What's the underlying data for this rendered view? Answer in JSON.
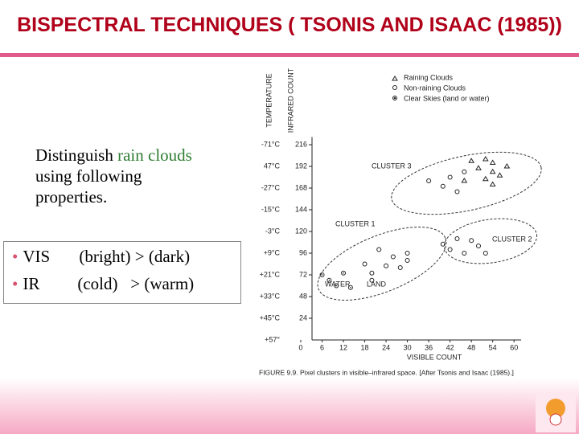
{
  "header": {
    "title": "BISPECTRAL TECHNIQUES ( TSONIS AND ISAAC (1985))"
  },
  "body": {
    "intro": [
      "Distinguish ",
      "rain clouds",
      " using following properties."
    ],
    "bullets": [
      [
        "VIS",
        "(bright) > (dark)"
      ],
      [
        "IR",
        "(cold)   > (warm)"
      ]
    ]
  },
  "figure": {
    "type": "scatter",
    "y_label": "TEMPERATURE",
    "y2_label": "INFRARED COUNT",
    "x_label": "VISIBLE COUNT",
    "caption": "FIGURE 9.9.   Pixel clusters in visible–infrared space. [After Tsonis and Isaac (1985).]",
    "xlim": [
      0,
      62
    ],
    "ylim": [
      0,
      220
    ],
    "xticks": [
      0,
      6,
      12,
      18,
      24,
      30,
      36,
      42,
      48,
      54,
      60
    ],
    "yticks": [
      216,
      192,
      168,
      144,
      120,
      96,
      72,
      48,
      24
    ],
    "temperature_labels": [
      "-71°C",
      "47°C",
      "-27°C",
      "-15°C",
      "-3°C",
      "+9°C",
      "+21°C",
      "+33°C",
      "+45°C",
      "+57°"
    ],
    "annotations": [
      "CLUSTER 3",
      "CLUSTER 1",
      "CLUSTER 2",
      "WATER",
      "LAND"
    ],
    "series": [
      {
        "name": "Raining Clouds",
        "marker": "triangle",
        "x": [
          48,
          52,
          54,
          50,
          54,
          56,
          52,
          46,
          58,
          54
        ],
        "values": [
          198,
          200,
          196,
          190,
          186,
          182,
          178,
          176,
          192,
          172
        ]
      },
      {
        "name": "Non-raining Clouds",
        "marker": "circle",
        "x": [
          42,
          40,
          36,
          46,
          44,
          18,
          20,
          24,
          26,
          28,
          30,
          22,
          30,
          20,
          42,
          44,
          46,
          50,
          48,
          52,
          40
        ],
        "values": [
          180,
          170,
          176,
          186,
          164,
          84,
          74,
          82,
          92,
          80,
          96,
          100,
          88,
          66,
          100,
          112,
          96,
          104,
          110,
          96,
          106
        ]
      },
      {
        "name": "Clear Skies (land or water)",
        "marker": "dot",
        "x": [
          6,
          8,
          10,
          12,
          14
        ],
        "values": [
          72,
          66,
          60,
          74,
          58
        ]
      }
    ]
  }
}
